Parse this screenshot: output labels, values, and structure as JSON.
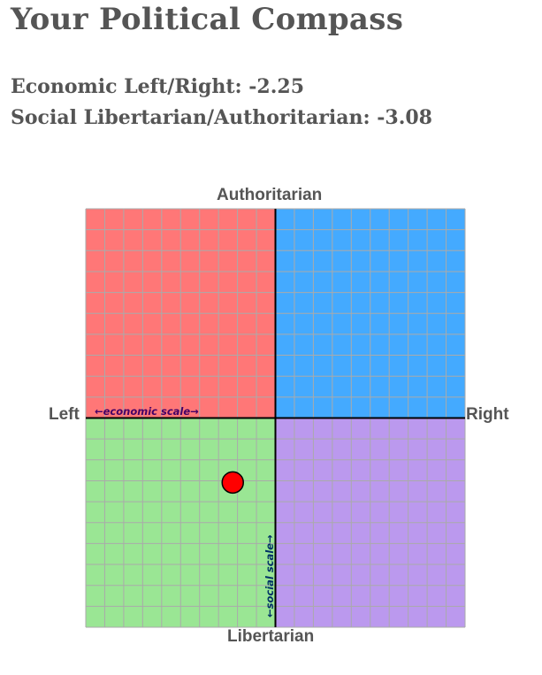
{
  "page": {
    "title": "Your Political Compass",
    "economic_line": "Economic Left/Right: -2.25",
    "social_line": "Social Libertarian/Authoritarian: -3.08"
  },
  "chart_data": {
    "type": "scatter",
    "title": "",
    "labels": {
      "top": "Authoritarian",
      "bottom": "Libertarian",
      "left": "Left",
      "right": "Right",
      "economic_scale": "←economic scale→",
      "social_scale": "←social scale→"
    },
    "xlim": [
      -10,
      10
    ],
    "ylim": [
      -10,
      10
    ],
    "grid": true,
    "quadrant_colors": {
      "top_left": "#ff7777",
      "top_right": "#44aaff",
      "bottom_left": "#9ae694",
      "bottom_right": "#bb99ee"
    },
    "grid_color": "#aaaaaa",
    "axis_color": "#000000",
    "scale_label_colors": {
      "economic": "#440066",
      "social": "#003366"
    },
    "points": [
      {
        "x": -2.25,
        "y": -3.08,
        "color": "#ff0000"
      }
    ]
  }
}
